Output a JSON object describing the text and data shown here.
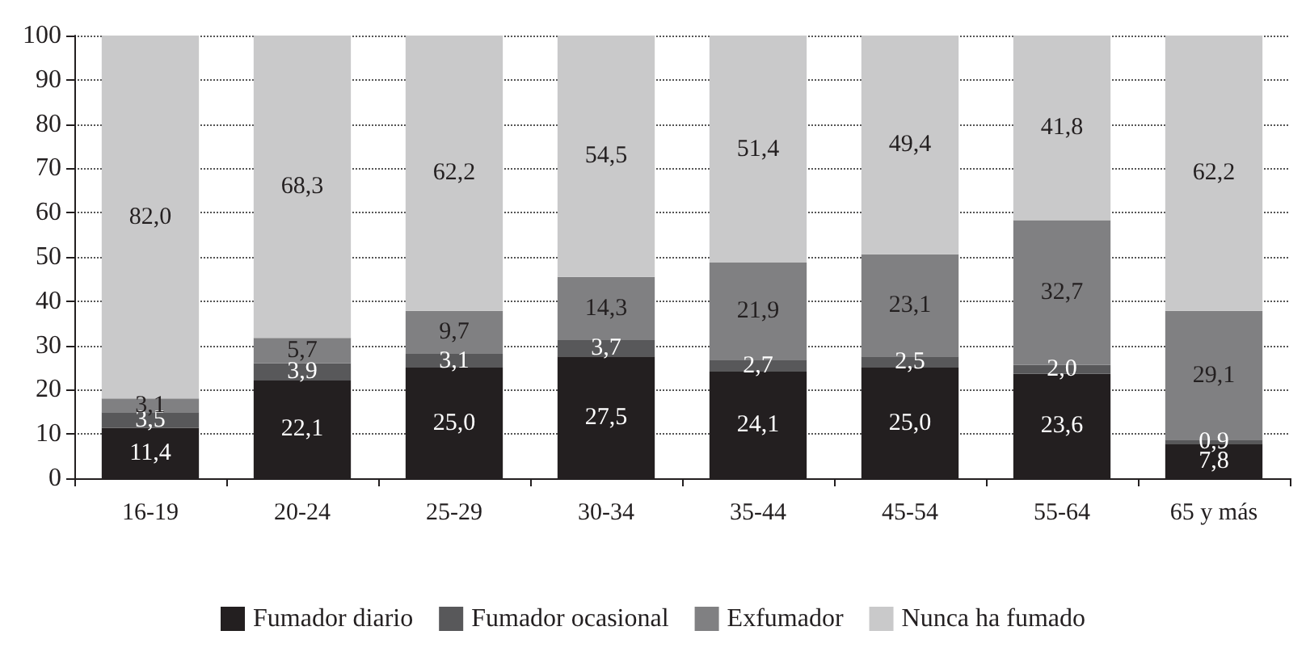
{
  "chart_data": {
    "type": "bar",
    "stacked": true,
    "categories": [
      "16-19",
      "20-24",
      "25-29",
      "30-34",
      "35-44",
      "45-54",
      "55-64",
      "65 y más"
    ],
    "series": [
      {
        "name": "Fumador diario",
        "color": "#231f20",
        "values": [
          11.4,
          22.1,
          25.0,
          27.5,
          24.1,
          25.0,
          23.6,
          7.8
        ],
        "value_labels": [
          "11,4",
          "22,1",
          "25,0",
          "27,5",
          "24,1",
          "25,0",
          "23,6",
          "7,8"
        ]
      },
      {
        "name": "Fumador ocasional",
        "color": "#58585a",
        "values": [
          3.5,
          3.9,
          3.1,
          3.7,
          2.7,
          2.5,
          2.0,
          0.9
        ],
        "value_labels": [
          "3,5",
          "3,9",
          "3,1",
          "3,7",
          "2,7",
          "2,5",
          "2,0",
          "0,9"
        ]
      },
      {
        "name": "Exfumador",
        "color": "#808082",
        "values": [
          3.1,
          5.7,
          9.7,
          14.3,
          21.9,
          23.1,
          32.7,
          29.1
        ],
        "value_labels": [
          "3,1",
          "5,7",
          "9,7",
          "14,3",
          "21,9",
          "23,1",
          "32,7",
          "29,1"
        ]
      },
      {
        "name": "Nunca ha fumado",
        "color": "#c9c9ca",
        "values": [
          82.0,
          68.3,
          62.2,
          54.5,
          51.4,
          49.4,
          41.8,
          62.2
        ],
        "value_labels": [
          "82,0",
          "68,3",
          "62,2",
          "54,5",
          "51,4",
          "49,4",
          "41,8",
          "62,2"
        ]
      }
    ],
    "ylim": [
      0,
      100
    ],
    "yticks": [
      0,
      10,
      20,
      30,
      40,
      50,
      60,
      70,
      80,
      90,
      100
    ],
    "grid": "y",
    "legend": "bottom"
  }
}
